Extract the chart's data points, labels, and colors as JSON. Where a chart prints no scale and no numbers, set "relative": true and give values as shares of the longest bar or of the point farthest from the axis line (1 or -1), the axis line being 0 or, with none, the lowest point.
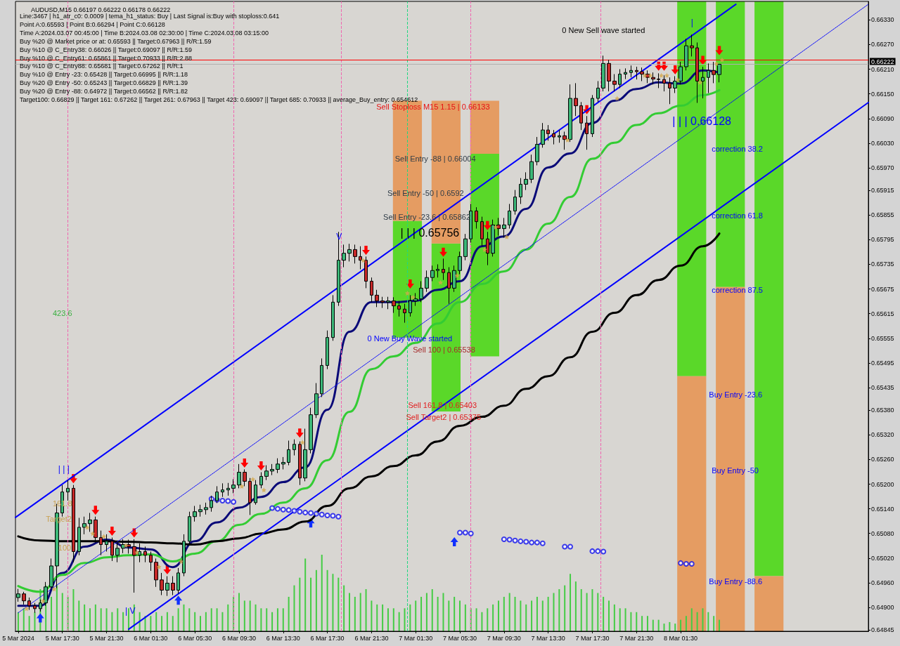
{
  "chart_data": [
    {
      "type": "candlestick",
      "title": "AUDUSD,M15 0.66197 0.66222 0.66178 0.66222",
      "x": [
        "2024-03-05T13:30",
        "2024-03-05T14:00",
        "2024-03-05T14:30",
        "2024-03-05T15:00",
        "2024-03-05T15:30",
        "2024-03-05T16:00",
        "2024-03-05T16:30",
        "2024-03-05T17:00",
        "2024-03-05T17:30",
        "2024-03-05T18:00",
        "2024-03-05T18:30",
        "2024-03-05T19:00",
        "2024-03-05T19:30",
        "2024-03-05T20:00",
        "2024-03-05T20:30",
        "2024-03-05T21:00",
        "2024-03-05T21:30",
        "2024-03-05T22:00",
        "2024-03-05T22:30",
        "2024-03-05T23:00",
        "2024-03-05T23:30",
        "2024-03-06T00:00",
        "2024-03-06T00:30",
        "2024-03-06T01:00",
        "2024-03-06T01:30",
        "2024-03-06T02:00",
        "2024-03-06T02:30",
        "2024-03-06T03:00",
        "2024-03-06T03:30",
        "2024-03-06T04:00",
        "2024-03-06T04:30",
        "2024-03-06T05:00",
        "2024-03-06T05:30",
        "2024-03-06T06:00",
        "2024-03-06T06:30",
        "2024-03-06T07:00",
        "2024-03-06T07:30",
        "2024-03-06T08:00",
        "2024-03-06T08:30",
        "2024-03-06T09:00",
        "2024-03-06T09:30",
        "2024-03-06T10:00",
        "2024-03-06T10:30",
        "2024-03-06T11:00",
        "2024-03-06T11:30",
        "2024-03-06T12:00",
        "2024-03-06T12:30",
        "2024-03-06T13:00",
        "2024-03-06T13:30",
        "2024-03-06T14:00",
        "2024-03-06T14:30",
        "2024-03-06T15:00",
        "2024-03-06T15:30",
        "2024-03-06T16:00",
        "2024-03-06T16:30",
        "2024-03-06T17:00",
        "2024-03-06T17:30",
        "2024-03-06T18:00",
        "2024-03-06T18:30",
        "2024-03-06T19:00",
        "2024-03-06T19:30",
        "2024-03-06T20:00",
        "2024-03-06T20:30",
        "2024-03-06T21:00",
        "2024-03-06T21:30",
        "2024-03-06T22:00",
        "2024-03-06T22:30",
        "2024-03-06T23:00",
        "2024-03-06T23:30",
        "2024-03-07T00:00",
        "2024-03-07T00:30",
        "2024-03-07T01:00",
        "2024-03-07T01:30",
        "2024-03-07T02:00",
        "2024-03-07T02:30",
        "2024-03-07T03:00",
        "2024-03-07T03:30",
        "2024-03-07T04:00",
        "2024-03-07T04:30",
        "2024-03-07T05:00",
        "2024-03-07T05:30",
        "2024-03-07T06:00",
        "2024-03-07T06:30",
        "2024-03-07T07:00",
        "2024-03-07T07:30",
        "2024-03-07T08:00",
        "2024-03-07T08:30",
        "2024-03-07T09:00",
        "2024-03-07T09:30",
        "2024-03-07T10:00",
        "2024-03-07T10:30",
        "2024-03-07T11:00",
        "2024-03-07T11:30",
        "2024-03-07T12:00",
        "2024-03-07T12:30",
        "2024-03-07T13:00",
        "2024-03-07T13:30",
        "2024-03-07T14:00",
        "2024-03-07T14:30",
        "2024-03-07T15:00",
        "2024-03-07T15:30",
        "2024-03-07T16:00",
        "2024-03-07T16:30",
        "2024-03-07T17:00",
        "2024-03-07T17:30",
        "2024-03-07T18:00",
        "2024-03-07T18:30",
        "2024-03-07T19:00",
        "2024-03-07T19:30",
        "2024-03-07T20:00",
        "2024-03-07T20:30",
        "2024-03-07T21:00",
        "2024-03-07T21:30",
        "2024-03-07T22:00",
        "2024-03-07T22:30",
        "2024-03-07T23:00",
        "2024-03-07T23:30",
        "2024-03-08T00:00",
        "2024-03-08T00:30",
        "2024-03-08T01:00",
        "2024-03-08T01:30",
        "2024-03-08T02:00",
        "2024-03-08T02:30",
        "2024-03-08T03:00",
        "2024-03-08T03:30",
        "2024-03-08T04:00",
        "2024-03-08T04:30",
        "2024-03-08T05:00"
      ],
      "ohlc": [
        [
          0.64924,
          0.64945,
          0.64914,
          0.64933
        ],
        [
          0.64933,
          0.64938,
          0.64907,
          0.64916
        ],
        [
          0.64916,
          0.64924,
          0.64894,
          0.64904
        ],
        [
          0.64904,
          0.64911,
          0.64887,
          0.64897
        ],
        [
          0.64897,
          0.64919,
          0.6489,
          0.64911
        ],
        [
          0.64911,
          0.64962,
          0.64904,
          0.6495
        ],
        [
          0.6495,
          0.65019,
          0.64942,
          0.65001
        ],
        [
          0.65001,
          0.65152,
          0.64947,
          0.6513
        ],
        [
          0.6513,
          0.65198,
          0.65121,
          0.65181
        ],
        [
          0.65181,
          0.6521,
          0.6516,
          0.6519
        ],
        [
          0.6519,
          0.65198,
          0.6501,
          0.65036
        ],
        [
          0.65036,
          0.65118,
          0.65027,
          0.65095
        ],
        [
          0.65095,
          0.65121,
          0.65078,
          0.65104
        ],
        [
          0.65104,
          0.6513,
          0.65084,
          0.65113
        ],
        [
          0.65113,
          0.65121,
          0.65058,
          0.6507
        ],
        [
          0.6507,
          0.65087,
          0.65027,
          0.65053
        ],
        [
          0.65053,
          0.65078,
          0.65036,
          0.65061
        ],
        [
          0.65061,
          0.6507,
          0.65013,
          0.65027
        ],
        [
          0.65027,
          0.65058,
          0.6501,
          0.65044
        ],
        [
          0.65044,
          0.65066,
          0.65032,
          0.65053
        ],
        [
          0.65053,
          0.65065,
          0.65031,
          0.65048
        ],
        [
          0.65048,
          0.65066,
          0.64936,
          0.65027
        ],
        [
          0.65027,
          0.65056,
          0.6501,
          0.65036
        ],
        [
          0.65036,
          0.65048,
          0.6501,
          0.65027
        ],
        [
          0.65027,
          0.65036,
          0.64989,
          0.6501
        ],
        [
          0.6501,
          0.65019,
          0.6495,
          0.64967
        ],
        [
          0.64967,
          0.64984,
          0.6493,
          0.64942
        ],
        [
          0.64942,
          0.64976,
          0.64928,
          0.64959
        ],
        [
          0.64959,
          0.64976,
          0.6493,
          0.64942
        ],
        [
          0.64942,
          0.64996,
          0.64933,
          0.64984
        ],
        [
          0.64984,
          0.65078,
          0.64976,
          0.65061
        ],
        [
          0.65061,
          0.65133,
          0.65053,
          0.65121
        ],
        [
          0.65121,
          0.65147,
          0.65109,
          0.65133
        ],
        [
          0.65133,
          0.6515,
          0.65121,
          0.65138
        ],
        [
          0.65138,
          0.65155,
          0.65126,
          0.65143
        ],
        [
          0.65143,
          0.65172,
          0.65133,
          0.6516
        ],
        [
          0.6516,
          0.65195,
          0.65154,
          0.65181
        ],
        [
          0.65181,
          0.65202,
          0.65169,
          0.65186
        ],
        [
          0.65186,
          0.65203,
          0.65172,
          0.6519
        ],
        [
          0.6519,
          0.65212,
          0.65178,
          0.65198
        ],
        [
          0.65198,
          0.65249,
          0.6519,
          0.65229
        ],
        [
          0.65229,
          0.65236,
          0.65195,
          0.65207
        ],
        [
          0.65207,
          0.65215,
          0.65125,
          0.65155
        ],
        [
          0.65155,
          0.6521,
          0.6515,
          0.65198
        ],
        [
          0.65198,
          0.65229,
          0.6519,
          0.65219
        ],
        [
          0.65219,
          0.65246,
          0.6521,
          0.65232
        ],
        [
          0.65232,
          0.65249,
          0.65222,
          0.65236
        ],
        [
          0.65236,
          0.65263,
          0.65227,
          0.65249
        ],
        [
          0.65249,
          0.65266,
          0.65236,
          0.65253
        ],
        [
          0.65253,
          0.65306,
          0.65246,
          0.65284
        ],
        [
          0.65284,
          0.65309,
          0.6527,
          0.65297
        ],
        [
          0.65297,
          0.65304,
          0.65198,
          0.65215
        ],
        [
          0.65215,
          0.65335,
          0.65207,
          0.65284
        ],
        [
          0.65284,
          0.65386,
          0.65275,
          0.65369
        ],
        [
          0.65369,
          0.65446,
          0.65361,
          0.6542
        ],
        [
          0.6542,
          0.65506,
          0.65412,
          0.65489
        ],
        [
          0.65489,
          0.65574,
          0.6548,
          0.65557
        ],
        [
          0.65557,
          0.6566,
          0.65549,
          0.65643
        ],
        [
          0.65643,
          0.65814,
          0.65634,
          0.65745
        ],
        [
          0.65745,
          0.65783,
          0.65728,
          0.65762
        ],
        [
          0.65762,
          0.65785,
          0.65742,
          0.65771
        ],
        [
          0.65771,
          0.65783,
          0.65737,
          0.65754
        ],
        [
          0.65754,
          0.65779,
          0.65723,
          0.65745
        ],
        [
          0.65745,
          0.65754,
          0.65677,
          0.65694
        ],
        [
          0.65694,
          0.65703,
          0.65643,
          0.6566
        ],
        [
          0.6566,
          0.65673,
          0.65631,
          0.65646
        ],
        [
          0.65646,
          0.65656,
          0.65629,
          0.65643
        ],
        [
          0.65643,
          0.65656,
          0.65626,
          0.65646
        ],
        [
          0.65646,
          0.65655,
          0.65617,
          0.65634
        ],
        [
          0.65634,
          0.65646,
          0.65608,
          0.65626
        ],
        [
          0.65626,
          0.65639,
          0.65593,
          0.65617
        ],
        [
          0.65617,
          0.6566,
          0.65608,
          0.65646
        ],
        [
          0.65646,
          0.65665,
          0.65634,
          0.65651
        ],
        [
          0.65651,
          0.65694,
          0.65643,
          0.65677
        ],
        [
          0.65677,
          0.6572,
          0.65668,
          0.65703
        ],
        [
          0.65703,
          0.65732,
          0.65694,
          0.6572
        ],
        [
          0.6572,
          0.65735,
          0.65703,
          0.65723
        ],
        [
          0.65723,
          0.65749,
          0.65697,
          0.65715
        ],
        [
          0.65715,
          0.65728,
          0.65639,
          0.65677
        ],
        [
          0.65677,
          0.65732,
          0.65668,
          0.6572
        ],
        [
          0.6572,
          0.65766,
          0.65711,
          0.65754
        ],
        [
          0.65754,
          0.65809,
          0.65745,
          0.65797
        ],
        [
          0.65797,
          0.65882,
          0.65788,
          0.65865
        ],
        [
          0.65865,
          0.65874,
          0.65822,
          0.65839
        ],
        [
          0.65839,
          0.65851,
          0.65779,
          0.65797
        ],
        [
          0.65797,
          0.65814,
          0.65733,
          0.65762
        ],
        [
          0.65762,
          0.65844,
          0.65754,
          0.65831
        ],
        [
          0.65831,
          0.65848,
          0.65805,
          0.65822
        ],
        [
          0.65822,
          0.65848,
          0.658,
          0.65831
        ],
        [
          0.65831,
          0.65882,
          0.65822,
          0.65865
        ],
        [
          0.65865,
          0.65916,
          0.65856,
          0.65899
        ],
        [
          0.65899,
          0.65945,
          0.65882,
          0.6593
        ],
        [
          0.6593,
          0.65959,
          0.65916,
          0.65942
        ],
        [
          0.65942,
          0.66002,
          0.65933,
          0.65985
        ],
        [
          0.65985,
          0.66045,
          0.65976,
          0.66027
        ],
        [
          0.66027,
          0.66079,
          0.66019,
          0.66062
        ],
        [
          0.66062,
          0.66074,
          0.66036,
          0.66053
        ],
        [
          0.66053,
          0.66062,
          0.66027,
          0.66045
        ],
        [
          0.66045,
          0.66062,
          0.66031,
          0.66048
        ],
        [
          0.66048,
          0.66058,
          0.66014,
          0.66039
        ],
        [
          0.66039,
          0.66173,
          0.66033,
          0.66139
        ],
        [
          0.66139,
          0.66176,
          0.66096,
          0.66121
        ],
        [
          0.66121,
          0.6613,
          0.66062,
          0.66079
        ],
        [
          0.66079,
          0.66096,
          0.66014,
          0.66053
        ],
        [
          0.66053,
          0.66147,
          0.66045,
          0.66139
        ],
        [
          0.66139,
          0.66181,
          0.6613,
          0.66164
        ],
        [
          0.66164,
          0.66243,
          0.66156,
          0.66224
        ],
        [
          0.66224,
          0.66233,
          0.66156,
          0.66181
        ],
        [
          0.66181,
          0.66198,
          0.66156,
          0.66173
        ],
        [
          0.66173,
          0.6621,
          0.66164,
          0.66198
        ],
        [
          0.66198,
          0.66212,
          0.66186,
          0.66202
        ],
        [
          0.66202,
          0.66219,
          0.6619,
          0.66207
        ],
        [
          0.66207,
          0.66216,
          0.66185,
          0.66204
        ],
        [
          0.66204,
          0.66214,
          0.66181,
          0.66198
        ],
        [
          0.66198,
          0.66207,
          0.66176,
          0.6619
        ],
        [
          0.6619,
          0.66202,
          0.66173,
          0.66186
        ],
        [
          0.66186,
          0.662,
          0.66164,
          0.66185
        ],
        [
          0.66185,
          0.66195,
          0.66156,
          0.66176
        ],
        [
          0.66176,
          0.6619,
          0.66125,
          0.66164
        ],
        [
          0.66164,
          0.66193,
          0.66152,
          0.66181
        ],
        [
          0.66181,
          0.66228,
          0.66173,
          0.66216
        ],
        [
          0.66216,
          0.66284,
          0.66207,
          0.66267
        ],
        [
          0.66267,
          0.66294,
          0.66241,
          0.66262
        ],
        [
          0.66262,
          0.66275,
          0.66128,
          0.66181
        ],
        [
          0.66181,
          0.66216,
          0.66139,
          0.6619
        ],
        [
          0.6619,
          0.66224,
          0.66152,
          0.66207
        ],
        [
          0.66207,
          0.66228,
          0.66176,
          0.66197
        ],
        [
          0.66197,
          0.66222,
          0.66178,
          0.66222
        ]
      ],
      "series": [
        {
          "type": "line",
          "color": "#0a0a78",
          "x": [
            "2024-03-05T13:30",
            "2024-03-05T15:30",
            "2024-03-05T17:30",
            "2024-03-05T19:30",
            "2024-03-05T21:30",
            "2024-03-05T23:30",
            "2024-03-06T01:30",
            "2024-03-06T03:30",
            "2024-03-06T05:30",
            "2024-03-06T07:30",
            "2024-03-06T09:30",
            "2024-03-06T11:30",
            "2024-03-06T13:30",
            "2024-03-06T15:30",
            "2024-03-06T17:30",
            "2024-03-06T19:30",
            "2024-03-06T21:30",
            "2024-03-06T23:30",
            "2024-03-07T01:30",
            "2024-03-07T03:30",
            "2024-03-07T05:30",
            "2024-03-07T07:30",
            "2024-03-07T09:30",
            "2024-03-07T11:30",
            "2024-03-07T13:30",
            "2024-03-07T15:30",
            "2024-03-07T17:30",
            "2024-03-07T19:30",
            "2024-03-07T21:30",
            "2024-03-07T23:30",
            "2024-03-08T01:30",
            "2024-03-08T03:30",
            "2024-03-08T05:00"
          ],
          "values": [
            0.64904,
            0.64904,
            0.64984,
            0.65048,
            0.65065,
            0.65046,
            0.65041,
            0.64998,
            0.65061,
            0.65107,
            0.65143,
            0.65169,
            0.65205,
            0.65241,
            0.65381,
            0.65571,
            0.65643,
            0.65643,
            0.65646,
            0.65673,
            0.65694,
            0.65779,
            0.65803,
            0.6587,
            0.65971,
            0.66005,
            0.66079,
            0.66133,
            0.66162,
            0.66178,
            0.66175,
            0.66207,
            0.66202
          ]
        },
        {
          "type": "line",
          "color": "#33cc33",
          "x": [
            "2024-03-05T13:30",
            "2024-03-05T15:30",
            "2024-03-05T17:30",
            "2024-03-05T19:30",
            "2024-03-05T21:30",
            "2024-03-05T23:30",
            "2024-03-06T01:30",
            "2024-03-06T03:30",
            "2024-03-06T05:30",
            "2024-03-06T07:30",
            "2024-03-06T09:30",
            "2024-03-06T11:30",
            "2024-03-06T13:30",
            "2024-03-06T15:30",
            "2024-03-06T17:30",
            "2024-03-06T19:30",
            "2024-03-06T21:30",
            "2024-03-06T23:30",
            "2024-03-07T01:30",
            "2024-03-07T03:30",
            "2024-03-07T05:30",
            "2024-03-07T07:30",
            "2024-03-07T09:30",
            "2024-03-07T11:30",
            "2024-03-07T13:30",
            "2024-03-07T15:30",
            "2024-03-07T17:30",
            "2024-03-07T19:30",
            "2024-03-07T21:30",
            "2024-03-07T23:30",
            "2024-03-08T01:30",
            "2024-03-08T03:30",
            "2024-03-08T05:00"
          ],
          "values": [
            0.64952,
            0.64938,
            0.64979,
            0.65008,
            0.65022,
            0.65027,
            0.65029,
            0.65012,
            0.65031,
            0.65061,
            0.65101,
            0.65128,
            0.65155,
            0.6519,
            0.65258,
            0.65376,
            0.6548,
            0.65511,
            0.65544,
            0.65591,
            0.65643,
            0.65687,
            0.65718,
            0.65771,
            0.65834,
            0.65899,
            0.65992,
            0.66031,
            0.66074,
            0.66103,
            0.66121,
            0.66147,
            0.66159
          ]
        },
        {
          "type": "line",
          "color": "#000000",
          "x": [
            "2024-03-05T13:30",
            "2024-03-05T15:30",
            "2024-03-05T17:30",
            "2024-03-05T19:30",
            "2024-03-05T21:30",
            "2024-03-05T23:30",
            "2024-03-06T01:30",
            "2024-03-06T03:30",
            "2024-03-06T05:30",
            "2024-03-06T07:30",
            "2024-03-06T09:30",
            "2024-03-06T11:30",
            "2024-03-06T13:30",
            "2024-03-06T15:30",
            "2024-03-06T17:30",
            "2024-03-06T19:30",
            "2024-03-06T21:30",
            "2024-03-06T23:30",
            "2024-03-07T01:30",
            "2024-03-07T03:30",
            "2024-03-07T05:30",
            "2024-03-07T07:30",
            "2024-03-07T09:30",
            "2024-03-07T11:30",
            "2024-03-07T13:30",
            "2024-03-07T15:30",
            "2024-03-07T17:30",
            "2024-03-07T19:30",
            "2024-03-07T21:30",
            "2024-03-07T23:30",
            "2024-03-08T01:30",
            "2024-03-08T03:30",
            "2024-03-08T05:00"
          ],
          "values": [
            0.65073,
            0.65063,
            0.65061,
            0.65061,
            0.65061,
            0.6506,
            0.65058,
            0.65056,
            0.65053,
            0.65061,
            0.65068,
            0.6508,
            0.6509,
            0.65109,
            0.65147,
            0.6519,
            0.65219,
            0.65244,
            0.6527,
            0.65304,
            0.65342,
            0.65364,
            0.65391,
            0.65432,
            0.65463,
            0.65509,
            0.65571,
            0.65617,
            0.6566,
            0.65697,
            0.65732,
            0.65779,
            0.6581
          ]
        },
        {
          "type": "line",
          "color": "#0000ff",
          "x": [
            "2024-03-05T13:15",
            "2024-03-08T06:30"
          ],
          "values": [
            0.65119,
            0.66368
          ]
        },
        {
          "type": "line",
          "color": "#0000ff",
          "x": [
            "2024-03-05T23:30",
            "2024-03-08T18:30"
          ],
          "values": [
            0.64847,
            0.66129
          ]
        },
        {
          "type": "line",
          "color": "#0000ff",
          "line_style": "dotted",
          "x": [
            "2024-03-05T13:30",
            "2024-03-08T18:30"
          ],
          "values": [
            0.64887,
            0.66368
          ]
        },
        {
          "type": "scatter",
          "color": "#1010ee",
          "marker": "circle",
          "x": [
            "2024-03-06T07:00",
            "2024-03-06T07:30",
            "2024-03-06T08:00",
            "2024-03-06T08:30",
            "2024-03-06T09:00",
            "2024-03-06T12:30",
            "2024-03-06T13:00",
            "2024-03-06T13:30",
            "2024-03-06T14:00",
            "2024-03-06T14:30",
            "2024-03-06T15:00",
            "2024-03-06T15:30",
            "2024-03-06T16:00",
            "2024-03-06T16:30",
            "2024-03-06T17:00",
            "2024-03-06T17:30",
            "2024-03-06T18:00",
            "2024-03-06T18:30",
            "2024-03-07T05:30",
            "2024-03-07T06:00",
            "2024-03-07T06:30",
            "2024-03-07T09:30",
            "2024-03-07T10:00",
            "2024-03-07T10:30",
            "2024-03-07T11:00",
            "2024-03-07T11:30",
            "2024-03-07T12:00",
            "2024-03-07T12:30",
            "2024-03-07T13:00",
            "2024-03-07T15:00",
            "2024-03-07T15:30",
            "2024-03-07T17:30",
            "2024-03-07T18:00",
            "2024-03-07T18:30",
            "2024-03-08T01:30",
            "2024-03-08T02:00",
            "2024-03-08T02:30"
          ],
          "values": [
            0.65164,
            0.65162,
            0.6516,
            0.65159,
            0.65157,
            0.65142,
            0.6514,
            0.65138,
            0.65137,
            0.65135,
            0.65133,
            0.65131,
            0.6513,
            0.65128,
            0.65126,
            0.65124,
            0.65123,
            0.65121,
            0.65082,
            0.65082,
            0.6508,
            0.65066,
            0.65065,
            0.65063,
            0.65061,
            0.6506,
            0.65058,
            0.65058,
            0.65056,
            0.65048,
            0.65048,
            0.65037,
            0.65037,
            0.65036,
            0.65008,
            0.65006,
            0.65006
          ]
        },
        {
          "type": "scatter",
          "color": "#d4a84a",
          "marker": "star",
          "x": [
            "2024-03-05T14:15",
            "2024-03-05T15:45",
            "2024-03-05T16:45",
            "2024-03-05T19:45",
            "2024-03-05T20:15",
            "2024-03-05T21:15",
            "2024-03-05T23:15",
            "2024-03-06T00:15",
            "2024-03-06T02:15",
            "2024-03-06T04:15",
            "2024-03-06T09:45",
            "2024-03-06T10:45",
            "2024-03-06T11:45",
            "2024-03-06T15:15",
            "2024-03-06T20:45",
            "2024-03-07T00:45",
            "2024-03-07T01:15",
            "2024-03-07T03:45",
            "2024-03-07T05:15",
            "2024-03-07T07:45",
            "2024-03-07T08:45",
            "2024-03-07T09:45",
            "2024-03-07T15:15",
            "2024-03-07T19:45",
            "2024-03-07T22:15",
            "2024-03-07T22:45",
            "2024-03-07T23:45",
            "2024-03-08T00:15",
            "2024-03-08T01:15",
            "2024-03-08T03:15",
            "2024-03-08T04:45",
            "2024-03-08T05:15"
          ],
          "values": [
            0.64897,
            0.64916,
            0.64945,
            0.65095,
            0.6508,
            0.65073,
            0.65051,
            0.65034,
            0.64999,
            0.65012,
            0.65195,
            0.65212,
            0.65186,
            0.65302,
            0.65745,
            0.65665,
            0.65655,
            0.65691,
            0.65708,
            0.65771,
            0.65826,
            0.65802,
            0.66038,
            0.66139,
            0.66195,
            0.66195,
            0.66195,
            0.66195,
            0.66185,
            0.66178,
            0.66224,
            0.66233
          ]
        },
        {
          "type": "bar",
          "color": "#5ad829",
          "x": [
            "2024-03-07T00:45",
            "2024-03-07T04:15",
            "2024-03-07T07:45",
            "2024-03-08T02:30",
            "2024-03-08T06:00",
            "2024-03-08T09:30"
          ],
          "base": [
            0.65557,
            0.65377,
            0.65511,
            0.65463,
            0.6568,
            0.64976
          ],
          "values": [
            0.00284,
            0.00409,
            0.00493,
            0.00912,
            0.00695,
            0.01399
          ]
        },
        {
          "type": "bar",
          "color": "#e59c62",
          "x": [
            "2024-03-07T00:45",
            "2024-03-07T04:15",
            "2024-03-07T07:45",
            "2024-03-08T02:30",
            "2024-03-08T06:00",
            "2024-03-08T09:30"
          ],
          "base": [
            0.65841,
            0.65786,
            0.66004,
            0.64842,
            0.64842,
            0.64842
          ],
          "values": [
            0.00292,
            0.00347,
            0.00129,
            0.00621,
            0.00838,
            0.00134
          ]
        }
      ],
      "xlim": [
        "2024-03-05T13:15",
        "2024-03-08T18:30"
      ],
      "xticks": [
        {
          "value": "2024-03-05T13:30",
          "label": "5 Mar 2024"
        },
        {
          "value": "2024-03-05T17:30",
          "label": "5 Mar 17:30"
        },
        {
          "value": "2024-03-05T21:30",
          "label": "5 Mar 21:30"
        },
        {
          "value": "2024-03-06T01:30",
          "label": "6 Mar 01:30"
        },
        {
          "value": "2024-03-06T05:30",
          "label": "6 Mar 05:30"
        },
        {
          "value": "2024-03-06T09:30",
          "label": "6 Mar 09:30"
        },
        {
          "value": "2024-03-06T13:30",
          "label": "6 Mar 13:30"
        },
        {
          "value": "2024-03-06T17:30",
          "label": "6 Mar 17:30"
        },
        {
          "value": "2024-03-06T21:30",
          "label": "6 Mar 21:30"
        },
        {
          "value": "2024-03-07T01:30",
          "label": "7 Mar 01:30"
        },
        {
          "value": "2024-03-07T05:30",
          "label": "7 Mar 05:30"
        },
        {
          "value": "2024-03-07T09:30",
          "label": "7 Mar 09:30"
        },
        {
          "value": "2024-03-07T13:30",
          "label": "7 Mar 13:30"
        },
        {
          "value": "2024-03-07T17:30",
          "label": "7 Mar 17:30"
        },
        {
          "value": "2024-03-07T21:30",
          "label": "7 Mar 21:30"
        },
        {
          "value": "2024-03-08T01:30",
          "label": "8 Mar 01:30"
        }
      ],
      "ylim": [
        0.64842,
        0.66375
      ],
      "yticks": [
        {
          "value": 0.6633,
          "label": "0.66330"
        },
        {
          "value": 0.6627,
          "label": "0.66270"
        },
        {
          "value": 0.6621,
          "label": "0.66210"
        },
        {
          "value": 0.6615,
          "label": "0.66150"
        },
        {
          "value": 0.6609,
          "label": "0.66090"
        },
        {
          "value": 0.6603,
          "label": "0.66030"
        },
        {
          "value": 0.6597,
          "label": "0.65970"
        },
        0.65915,
        0.65855,
        0.65795,
        0.65735,
        0.65675,
        0.65615,
        0.65555,
        0.65495,
        0.65435,
        {
          "value": 0.6538,
          "label": "0.65380"
        },
        {
          "value": 0.6532,
          "label": "0.65320"
        },
        {
          "value": 0.6526,
          "label": "0.65260"
        },
        {
          "value": 0.652,
          "label": "0.65200"
        },
        {
          "value": 0.6514,
          "label": "0.65140"
        },
        {
          "value": 0.6508,
          "label": "0.65080"
        },
        {
          "value": 0.6502,
          "label": "0.65020"
        },
        {
          "value": 0.6496,
          "label": "0.64960"
        },
        {
          "value": 0.649,
          "label": "0.64900"
        },
        0.64845
      ],
      "ref_lines": [
        {
          "axis": "x",
          "value": "2024-03-05T18:00",
          "color": "#f066b0",
          "line_style": "dashed"
        },
        {
          "axis": "x",
          "value": "2024-03-06T09:00",
          "color": "#f066b0",
          "line_style": "dashed"
        },
        {
          "axis": "x",
          "value": "2024-03-06T18:45",
          "color": "#f066b0",
          "line_style": "dashed"
        },
        {
          "axis": "x",
          "value": "2024-03-07T06:30",
          "color": "#f066b0",
          "line_style": "dashed"
        },
        {
          "axis": "x",
          "value": "2024-03-07T18:15",
          "color": "#f066b0",
          "line_style": "dashed"
        },
        {
          "axis": "x",
          "value": "2024-03-07T00:45",
          "color": "#20d880",
          "line_style": "dashed"
        },
        {
          "axis": "y",
          "value": 0.66232,
          "color": "#ff0000"
        },
        {
          "axis": "y",
          "value": 0.66222,
          "label": "0.66222",
          "color": "#b0b0b0"
        }
      ],
      "annotations": [
        "Line:3467 | h1_atr_c0: 0.0009 | tema_h1_status: Buy | Last Signal is:Buy with stoploss:0.641",
        "Point A:0.65593 | Point B:0.66294 | Point C:0.66128",
        "Time A:2024.03.07 00:45:00 | Time B:2024.03.08 02:30:00 | Time C:2024.03.08 03:15:00",
        "Buy %20 @ Market price or at: 0.65593 || Target:0.67963 || R/R:1.59",
        "Buy %10 @ C_Entry38: 0.66026 || Target:0.69097 || R/R:1.59",
        "Buy %10 @ C_Entry61: 0.65861 || Target:0.70933 || R/R:2.88",
        "Buy %10 @ C_Entry88: 0.65681 || Target:0.67262 || R/R:1",
        "Buy %10 @ Entry -23: 0.65428 || Target:0.66995 || R/R:1.18",
        "Buy %20 @ Entry -50: 0.65243 || Target:0.66829 || R/R:1.39",
        "Buy %20 @ Entry -88: 0.64972 || Target:0.66562 || R/R:1.82",
        "Target100: 0.66829 || Target 161: 0.67262 || Target 261: 0.67963 || Target 423: 0.69097 || Target 685: 0.70933 || average_Buy_entry: 0.654612",
        "Sell Stoploss M15 1.15 | 0.66133",
        "Sell Entry -88 | 0.66004",
        "Sell Entry -50 | 0.6592",
        "Sell Entry -23.6 | 0.65862",
        "| | | 0.65756",
        "0 New Buy Wave started",
        "Sell 100 | 0.65538",
        "Sell 161.8 | 0.65403",
        "Sell Target2 | 0.65375",
        "0 New Sell wave started",
        "| | | 0.66128",
        "correction 38.2",
        "correction 61.8",
        "correction 87.5",
        "Buy Entry -23.6",
        "Buy Entry -50",
        "Buy Entry -88.6",
        "423.6",
        "161.8",
        "Target2",
        "100",
        "| | |",
        "| V",
        "V",
        "|"
      ]
    },
    {
      "type": "bar",
      "relative": true,
      "tick_labels": false,
      "color": "#44cc44",
      "x": [
        "2024-03-05T13:30",
        "2024-03-05T14:00",
        "2024-03-05T14:30",
        "2024-03-05T15:00",
        "2024-03-05T15:30",
        "2024-03-05T16:00",
        "2024-03-05T16:30",
        "2024-03-05T17:00",
        "2024-03-05T17:30",
        "2024-03-05T18:00",
        "2024-03-05T18:30",
        "2024-03-05T19:00",
        "2024-03-05T19:30",
        "2024-03-05T20:00",
        "2024-03-05T20:30",
        "2024-03-05T21:00",
        "2024-03-05T21:30",
        "2024-03-05T22:00",
        "2024-03-05T22:30",
        "2024-03-05T23:00",
        "2024-03-05T23:30",
        "2024-03-06T00:00",
        "2024-03-06T00:30",
        "2024-03-06T01:00",
        "2024-03-06T01:30",
        "2024-03-06T02:00",
        "2024-03-06T02:30",
        "2024-03-06T03:00",
        "2024-03-06T03:30",
        "2024-03-06T04:00",
        "2024-03-06T04:30",
        "2024-03-06T05:00",
        "2024-03-06T05:30",
        "2024-03-06T06:00",
        "2024-03-06T06:30",
        "2024-03-06T07:00",
        "2024-03-06T07:30",
        "2024-03-06T08:00",
        "2024-03-06T08:30",
        "2024-03-06T09:00",
        "2024-03-06T09:30",
        "2024-03-06T10:00",
        "2024-03-06T10:30",
        "2024-03-06T11:00",
        "2024-03-06T11:30",
        "2024-03-06T12:00",
        "2024-03-06T12:30",
        "2024-03-06T13:00",
        "2024-03-06T13:30",
        "2024-03-06T14:00",
        "2024-03-06T14:30",
        "2024-03-06T15:00",
        "2024-03-06T15:30",
        "2024-03-06T16:00",
        "2024-03-06T16:30",
        "2024-03-06T17:00",
        "2024-03-06T17:30",
        "2024-03-06T18:00",
        "2024-03-06T18:30",
        "2024-03-06T19:00",
        "2024-03-06T19:30",
        "2024-03-06T20:00",
        "2024-03-06T20:30",
        "2024-03-06T21:00",
        "2024-03-06T21:30",
        "2024-03-06T22:00",
        "2024-03-06T22:30",
        "2024-03-06T23:00",
        "2024-03-06T23:30",
        "2024-03-07T00:00",
        "2024-03-07T00:30",
        "2024-03-07T01:00",
        "2024-03-07T01:30",
        "2024-03-07T02:00",
        "2024-03-07T02:30",
        "2024-03-07T03:00",
        "2024-03-07T03:30",
        "2024-03-07T04:00",
        "2024-03-07T04:30",
        "2024-03-07T05:00",
        "2024-03-07T05:30",
        "2024-03-07T06:00",
        "2024-03-07T06:30",
        "2024-03-07T07:00",
        "2024-03-07T07:30",
        "2024-03-07T08:00",
        "2024-03-07T08:30",
        "2024-03-07T09:00",
        "2024-03-07T09:30",
        "2024-03-07T10:00",
        "2024-03-07T10:30",
        "2024-03-07T11:00",
        "2024-03-07T11:30",
        "2024-03-07T12:00",
        "2024-03-07T12:30",
        "2024-03-07T13:00",
        "2024-03-07T13:30",
        "2024-03-07T14:00",
        "2024-03-07T14:30",
        "2024-03-07T15:00",
        "2024-03-07T15:30",
        "2024-03-07T16:00",
        "2024-03-07T16:30",
        "2024-03-07T17:00",
        "2024-03-07T17:30",
        "2024-03-07T18:00",
        "2024-03-07T18:30",
        "2024-03-07T19:00",
        "2024-03-07T19:30",
        "2024-03-07T20:00",
        "2024-03-07T20:30",
        "2024-03-07T21:00",
        "2024-03-07T21:30",
        "2024-03-07T22:00",
        "2024-03-07T22:30",
        "2024-03-07T23:00",
        "2024-03-07T23:30",
        "2024-03-08T00:00",
        "2024-03-08T00:30",
        "2024-03-08T01:00",
        "2024-03-08T01:30",
        "2024-03-08T02:00",
        "2024-03-08T02:30",
        "2024-03-08T03:00",
        "2024-03-08T03:30",
        "2024-03-08T04:00",
        "2024-03-08T04:30",
        "2024-03-08T05:00"
      ],
      "xlim": [
        "2024-03-05T13:15",
        "2024-03-08T18:30"
      ],
      "values": [
        0.25,
        0.3,
        0.2,
        0.25,
        0.55,
        0.6,
        0.45,
        0.6,
        0.5,
        0.45,
        0.55,
        0.4,
        0.35,
        0.3,
        0.35,
        0.3,
        0.3,
        0.25,
        0.3,
        0.25,
        0.3,
        0.35,
        0.25,
        0.2,
        0.2,
        0.25,
        0.2,
        0.25,
        0.2,
        0.3,
        0.35,
        0.3,
        0.25,
        0.2,
        0.25,
        0.3,
        0.3,
        0.25,
        0.35,
        0.45,
        0.5,
        0.4,
        0.4,
        0.35,
        0.3,
        0.3,
        0.25,
        0.3,
        0.3,
        0.45,
        0.6,
        0.7,
        0.95,
        0.7,
        0.8,
        1,
        0.8,
        0.75,
        0.7,
        0.6,
        0.5,
        0.45,
        0.5,
        0.55,
        0.4,
        0.35,
        0.35,
        0.3,
        0.3,
        0.25,
        0.3,
        0.35,
        0.4,
        0.45,
        0.5,
        0.55,
        0.45,
        0.5,
        0.4,
        0.45,
        0.4,
        0.35,
        0.3,
        0.3,
        0.25,
        0.3,
        0.35,
        0.4,
        0.45,
        0.5,
        0.45,
        0.4,
        0.35,
        0.4,
        0.45,
        0.4,
        0.45,
        0.5,
        0.55,
        0.6,
        0.75,
        0.65,
        0.55,
        0.5,
        0.55,
        0.5,
        0.45,
        0.4,
        0.35,
        0.3,
        0.3,
        0.25,
        0.25,
        0.2,
        0.2,
        0.15,
        0.15,
        0.1,
        0.12,
        0.1,
        0.15,
        0.2,
        0.3,
        0.25,
        0.3,
        0.25,
        0.2,
        0.15
      ]
    }
  ]
}
